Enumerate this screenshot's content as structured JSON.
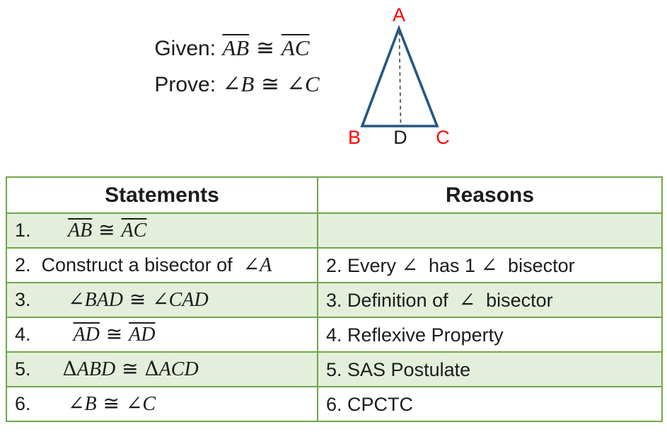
{
  "given": {
    "label": "Given:",
    "segments": [
      {
        "k": "ib",
        "v": "AB"
      },
      {
        "k": "s",
        "v": " ≅ "
      },
      {
        "k": "ib",
        "v": "AC"
      }
    ]
  },
  "prove": {
    "label": "Prove:",
    "segments": [
      {
        "k": "s",
        "v": "∠"
      },
      {
        "k": "i",
        "v": "B"
      },
      {
        "k": "s",
        "v": " ≅ ∠"
      },
      {
        "k": "i",
        "v": "C"
      }
    ]
  },
  "figure": {
    "labels": {
      "A": {
        "text": "A",
        "color": "#FF0000"
      },
      "B": {
        "text": "B",
        "color": "#FF0000"
      },
      "C": {
        "text": "C",
        "color": "#FF0000"
      },
      "D": {
        "text": "D",
        "color": "#1C1C1C"
      }
    },
    "stroke": "#255781",
    "dashed_line_color": "#4A4A4A"
  },
  "table": {
    "headers": {
      "statements": "Statements",
      "reasons": "Reasons"
    },
    "colors": {
      "border": "#6FA74B",
      "row_shade": "#E3EFDB"
    },
    "rows": [
      {
        "shaded": true,
        "statement": [
          {
            "k": "t",
            "v": "1.       "
          },
          {
            "k": "ib",
            "v": "AB"
          },
          {
            "k": "s",
            "v": " ≅ "
          },
          {
            "k": "ib",
            "v": "AC"
          }
        ],
        "reason": []
      },
      {
        "shaded": false,
        "statement": [
          {
            "k": "t",
            "v": "2.  Construct a bisector of  "
          },
          {
            "k": "s",
            "v": "∠"
          },
          {
            "k": "i",
            "v": "A"
          }
        ],
        "reason": [
          {
            "k": "t",
            "v": "2. Every "
          },
          {
            "k": "s",
            "v": "∠"
          },
          {
            "k": "t",
            "v": "  has 1 "
          },
          {
            "k": "s",
            "v": "∠"
          },
          {
            "k": "t",
            "v": "  bisector"
          }
        ]
      },
      {
        "shaded": true,
        "statement": [
          {
            "k": "t",
            "v": "3.       "
          },
          {
            "k": "s",
            "v": "∠"
          },
          {
            "k": "i",
            "v": "BAD"
          },
          {
            "k": "s",
            "v": " ≅ ∠"
          },
          {
            "k": "i",
            "v": "CAD"
          }
        ],
        "reason": [
          {
            "k": "t",
            "v": "3. Definition of  "
          },
          {
            "k": "s",
            "v": "∠"
          },
          {
            "k": "t",
            "v": "  bisector"
          }
        ]
      },
      {
        "shaded": false,
        "statement": [
          {
            "k": "t",
            "v": "4.        "
          },
          {
            "k": "ib",
            "v": "AD"
          },
          {
            "k": "s",
            "v": " ≅ "
          },
          {
            "k": "ib",
            "v": "AD"
          }
        ],
        "reason": [
          {
            "k": "t",
            "v": "4. Reflexive Property"
          }
        ]
      },
      {
        "shaded": true,
        "statement": [
          {
            "k": "t",
            "v": "5.      "
          },
          {
            "k": "s",
            "v": "Δ"
          },
          {
            "k": "i",
            "v": "ABD"
          },
          {
            "k": "s",
            "v": " ≅ Δ"
          },
          {
            "k": "i",
            "v": "ACD"
          }
        ],
        "reason": [
          {
            "k": "t",
            "v": "5. SAS Postulate"
          }
        ]
      },
      {
        "shaded": false,
        "statement": [
          {
            "k": "t",
            "v": "6.       "
          },
          {
            "k": "s",
            "v": "∠"
          },
          {
            "k": "i",
            "v": "B"
          },
          {
            "k": "s",
            "v": " ≅ ∠"
          },
          {
            "k": "i",
            "v": "C"
          }
        ],
        "reason": [
          {
            "k": "t",
            "v": "6. CPCTC"
          }
        ]
      }
    ]
  }
}
